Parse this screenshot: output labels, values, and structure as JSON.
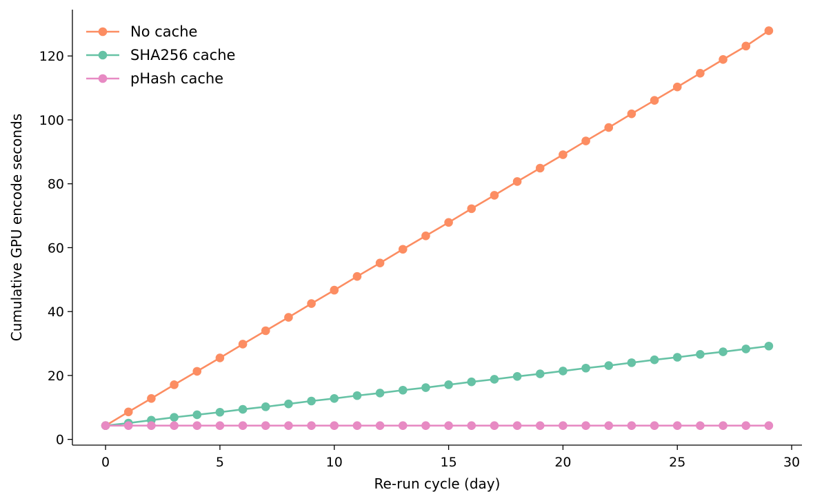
{
  "chart_data": {
    "type": "line",
    "title": "",
    "xlabel": "Re-run cycle (day)",
    "ylabel": "Cumulative GPU encode seconds",
    "x": [
      0,
      1,
      2,
      3,
      4,
      5,
      6,
      7,
      8,
      9,
      10,
      11,
      12,
      13,
      14,
      15,
      16,
      17,
      18,
      19,
      20,
      21,
      22,
      23,
      24,
      25,
      26,
      27,
      28,
      29
    ],
    "xlim": [
      -1.45,
      30.45
    ],
    "ylim": [
      -1.8,
      134.5
    ],
    "xticks": [
      0,
      5,
      10,
      15,
      20,
      25,
      30
    ],
    "yticks": [
      0,
      20,
      40,
      60,
      80,
      100,
      120
    ],
    "grid": false,
    "legend_position": "top-left",
    "series": [
      {
        "name": "No cache",
        "color": "#fc8d62",
        "values": [
          4.3,
          8.6,
          12.8,
          17.1,
          21.3,
          25.5,
          29.8,
          34.0,
          38.2,
          42.5,
          46.7,
          51.0,
          55.2,
          59.5,
          63.7,
          67.9,
          72.2,
          76.4,
          80.7,
          84.9,
          89.1,
          93.4,
          97.6,
          101.9,
          106.1,
          110.3,
          114.6,
          118.9,
          123.1,
          127.9
        ]
      },
      {
        "name": "SHA256 cache",
        "color": "#66c2a5",
        "values": [
          4.3,
          5.1,
          6.0,
          6.9,
          7.7,
          8.5,
          9.4,
          10.2,
          11.1,
          12.0,
          12.8,
          13.7,
          14.5,
          15.4,
          16.2,
          17.1,
          18.0,
          18.8,
          19.7,
          20.5,
          21.4,
          22.3,
          23.1,
          24.0,
          24.9,
          25.7,
          26.6,
          27.4,
          28.3,
          29.2
        ]
      },
      {
        "name": "pHash cache",
        "color": "#e78ac3",
        "values": [
          4.3,
          4.3,
          4.3,
          4.3,
          4.3,
          4.3,
          4.3,
          4.3,
          4.3,
          4.3,
          4.3,
          4.3,
          4.3,
          4.3,
          4.3,
          4.3,
          4.3,
          4.3,
          4.3,
          4.3,
          4.3,
          4.3,
          4.3,
          4.3,
          4.3,
          4.3,
          4.3,
          4.3,
          4.3,
          4.3
        ]
      }
    ]
  }
}
